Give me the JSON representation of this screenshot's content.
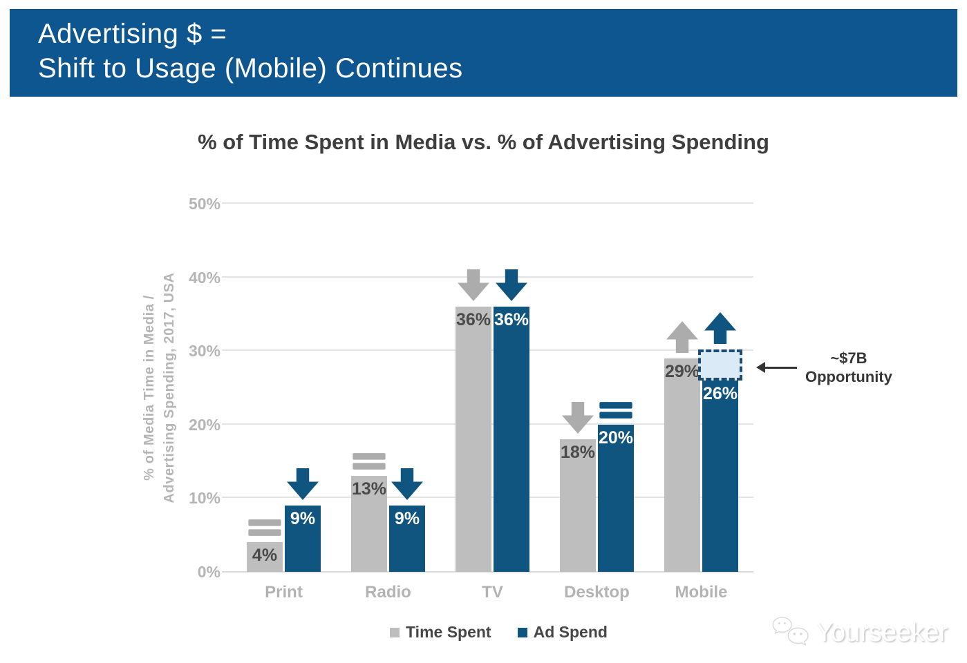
{
  "banner": {
    "line1": "Advertising $ =",
    "line2": "Shift to Usage (Mobile) Continues"
  },
  "watermark": {
    "text": "Yourseeker",
    "icon": "chat-bubbles-logo-icon"
  },
  "palette": {
    "banner_bg": "#0E568F",
    "banner_text": "#FFFFFF",
    "grid_line": "#E3E3E3",
    "axis_text": "#B5B5B5",
    "category_text": "#B3B3B3",
    "title_text": "#3E3E3E",
    "dashed_box_fill": "#DAEBF7",
    "dashed_box_border": "#1D4C70",
    "annotation_text": "#363636",
    "annotation_arrow": "#333333"
  },
  "chart_data": {
    "type": "bar",
    "title": "% of Time Spent in Media vs. % of Advertising Spending",
    "ylabel_line1": "% of Media Time in Media /",
    "ylabel_line2": "Advertising Spending, 2017, USA",
    "categories": [
      "Print",
      "Radio",
      "TV",
      "Desktop",
      "Mobile"
    ],
    "series": [
      {
        "name": "Time Spent",
        "color": "#BEBEBE",
        "icon_color": "#ACACAC",
        "label_color": "#4A4A4A",
        "values": [
          4,
          13,
          36,
          18,
          29
        ],
        "trend_icons": [
          "equals",
          "equals",
          "arrow-down",
          "arrow-down",
          "arrow-up"
        ]
      },
      {
        "name": "Ad Spend",
        "color": "#0F5580",
        "icon_color": "#0F5580",
        "label_color": "#FFFFFF",
        "values": [
          9,
          9,
          36,
          20,
          26
        ],
        "trend_icons": [
          "arrow-down",
          "arrow-down",
          "arrow-down",
          "equals",
          "arrow-up"
        ]
      }
    ],
    "y_ticks": [
      0,
      10,
      20,
      30,
      40,
      50
    ],
    "y_tick_suffix": "%",
    "value_label_suffix": "%",
    "ylim": [
      0,
      50
    ],
    "grid": true,
    "legend_position": "bottom",
    "annotation": {
      "line1": "~$7B",
      "line2": "Opportunity",
      "category": "Mobile",
      "series": "Ad Spend",
      "box_from": 26,
      "box_to": 29.5
    }
  }
}
